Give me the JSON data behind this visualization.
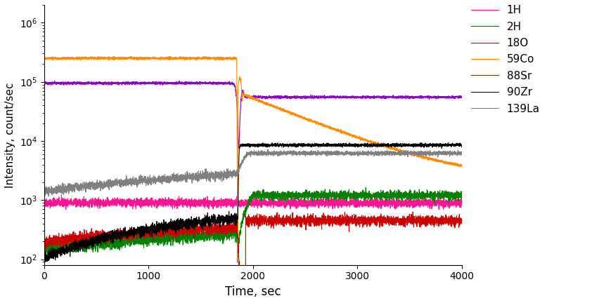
{
  "title": "",
  "xlabel": "Time, sec",
  "ylabel": "Intensity, count/sec",
  "xlim": [
    0,
    4000
  ],
  "legend_labels": [
    "1H",
    "2H",
    "18O",
    "59Co",
    "88Sr",
    "90Zr",
    "139La"
  ],
  "colors": {
    "1H": "#FF1493",
    "2H": "#008000",
    "18O": "#8B00CC",
    "59Co": "#FF8C00",
    "88Sr": "#CC0000",
    "90Zr": "#000000",
    "139La": "#808080"
  },
  "tt": 1850,
  "noise_seed": 42
}
